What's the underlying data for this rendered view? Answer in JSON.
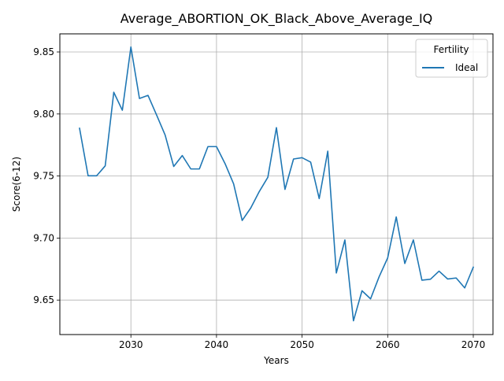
{
  "chart_data": {
    "type": "line",
    "title": "Average_ABORTION_OK_Black_Above_Average_IQ",
    "xlabel": "Years",
    "ylabel": "Score(6-12)",
    "xlim": [
      2021.7,
      2072.3
    ],
    "ylim": [
      9.6222,
      9.8646
    ],
    "x_ticks": [
      2030,
      2040,
      2050,
      2060,
      2070
    ],
    "x_tick_labels": [
      "2030",
      "2040",
      "2050",
      "2060",
      "2070"
    ],
    "y_ticks": [
      9.65,
      9.7,
      9.75,
      9.8,
      9.85
    ],
    "y_tick_labels": [
      "9.65",
      "9.70",
      "9.75",
      "9.80",
      "9.85"
    ],
    "grid": true,
    "legend": {
      "title": "Fertility",
      "position": "top-right"
    },
    "series": [
      {
        "name": "Ideal",
        "color": "#1f77b4",
        "x": [
          2024,
          2025,
          2026,
          2027,
          2028,
          2029,
          2030,
          2031,
          2032,
          2033,
          2034,
          2035,
          2036,
          2037,
          2038,
          2039,
          2040,
          2041,
          2042,
          2043,
          2044,
          2045,
          2046,
          2047,
          2048,
          2049,
          2050,
          2051,
          2052,
          2053,
          2054,
          2055,
          2056,
          2057,
          2058,
          2059,
          2060,
          2061,
          2062,
          2063,
          2064,
          2065,
          2066,
          2067,
          2068,
          2069,
          2070
        ],
        "values": [
          9.7885,
          9.7502,
          9.7502,
          9.7582,
          9.8175,
          9.803,
          9.854,
          9.8125,
          9.815,
          9.7992,
          9.783,
          9.7577,
          9.7665,
          9.7557,
          9.7557,
          9.7737,
          9.7737,
          9.76,
          9.7437,
          9.7142,
          9.7242,
          9.7375,
          9.749,
          9.789,
          9.7392,
          9.7637,
          9.7648,
          9.7612,
          9.7318,
          9.77,
          9.6718,
          9.6985,
          9.6333,
          9.6575,
          9.651,
          9.6688,
          9.684,
          9.717,
          9.6795,
          9.6985,
          9.666,
          9.6668,
          9.6733,
          9.667,
          9.6678,
          9.6598,
          9.6765
        ]
      }
    ]
  }
}
